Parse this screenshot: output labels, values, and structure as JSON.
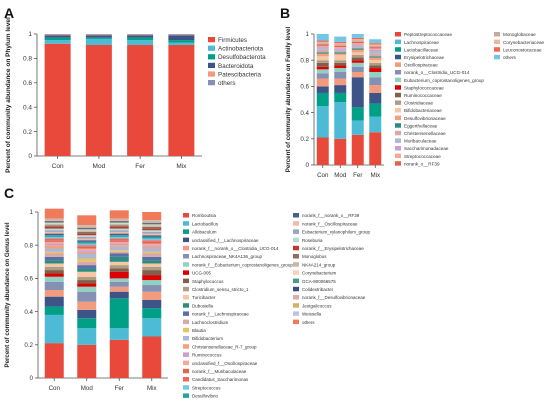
{
  "chart_data": [
    {
      "panel": "A",
      "type": "bar",
      "stacked": true,
      "ylabel": "Percent of community abundance on Phylum level",
      "ylim": [
        0,
        1
      ],
      "yticks": [
        "0",
        "0.2",
        "0.4",
        "0.6",
        "0.8",
        "1"
      ],
      "categories": [
        "Con",
        "Mod",
        "Fer",
        "Mix"
      ],
      "series": [
        {
          "name": "Firmicutes",
          "color": "#E8493A",
          "values": [
            0.92,
            0.91,
            0.91,
            0.91
          ]
        },
        {
          "name": "Actinobacteriota",
          "color": "#4DBBD5",
          "values": [
            0.03,
            0.05,
            0.04,
            0.02
          ]
        },
        {
          "name": "Desulfobacterota",
          "color": "#00A087",
          "values": [
            0.02,
            0.01,
            0.02,
            0.02
          ]
        },
        {
          "name": "Bacteroidota",
          "color": "#3C5488",
          "values": [
            0.02,
            0.02,
            0.02,
            0.04
          ]
        },
        {
          "name": "Patescibacteria",
          "color": "#F39B7F",
          "values": [
            0.005,
            0.005,
            0.005,
            0.005
          ]
        },
        {
          "name": "others",
          "color": "#8491B4",
          "values": [
            0.005,
            0.005,
            0.005,
            0.005
          ]
        }
      ]
    },
    {
      "panel": "B",
      "type": "bar",
      "stacked": true,
      "ylabel": "Percent of community abundance on Family level",
      "ylim": [
        0,
        1
      ],
      "yticks": [
        "0",
        "0.2",
        "0.4",
        "0.6",
        "0.8",
        "1"
      ],
      "categories": [
        "Con",
        "Mod",
        "Fer",
        "Mix"
      ],
      "series": [
        {
          "name": "Peptostreptococcaceae",
          "color": "#E8493A",
          "values": [
            0.21,
            0.2,
            0.23,
            0.25
          ]
        },
        {
          "name": "Lachnospiraceae",
          "color": "#4DBBD5",
          "values": [
            0.24,
            0.28,
            0.11,
            0.12
          ]
        },
        {
          "name": "Lactobacillaceae",
          "color": "#00A087",
          "values": [
            0.1,
            0.07,
            0.1,
            0.1
          ]
        },
        {
          "name": "Erysipelotrichaceae",
          "color": "#3C5488",
          "values": [
            0.05,
            0.06,
            0.23,
            0.08
          ]
        },
        {
          "name": "Oscillospiraceae",
          "color": "#F39B7F",
          "values": [
            0.06,
            0.05,
            0.04,
            0.06
          ]
        },
        {
          "name": "norank_o__Clostridia_UCG-014",
          "color": "#8491B4",
          "values": [
            0.04,
            0.05,
            0.04,
            0.06
          ]
        },
        {
          "name": "Eubacterium_coprostanoligenes_group",
          "color": "#91D1C2",
          "values": [
            0.03,
            0.03,
            0.03,
            0.04
          ]
        },
        {
          "name": "Staphylococcaceae",
          "color": "#DC0000",
          "values": [
            0.02,
            0.02,
            0.02,
            0.03
          ]
        },
        {
          "name": "Ruminococcaceae",
          "color": "#7E6148",
          "values": [
            0.03,
            0.02,
            0.02,
            0.02
          ]
        },
        {
          "name": "Clostridiaceae",
          "color": "#B09C85",
          "values": [
            0.02,
            0.02,
            0.02,
            0.02
          ]
        },
        {
          "name": "Bifidobacteriaceae",
          "color": "#F7C6A5",
          "values": [
            0.03,
            0.04,
            0.02,
            0.02
          ]
        },
        {
          "name": "Desulfovibrionaceae",
          "color": "#F4A07A",
          "values": [
            0.02,
            0.01,
            0.02,
            0.02
          ]
        },
        {
          "name": "Eggerthellaceae",
          "color": "#2E8B7F",
          "values": [
            0.01,
            0.01,
            0.01,
            0.01
          ]
        },
        {
          "name": "Christensenellaceae",
          "color": "#D9A8A8",
          "values": [
            0.02,
            0.01,
            0.01,
            0.02
          ]
        },
        {
          "name": "Muribaculaceae",
          "color": "#A9B9D6",
          "values": [
            0.01,
            0.01,
            0.01,
            0.02
          ]
        },
        {
          "name": "Saccharimonadaceae",
          "color": "#C7A0D0",
          "values": [
            0.01,
            0.01,
            0.01,
            0.01
          ]
        },
        {
          "name": "Streptococcaceae",
          "color": "#F8A89A",
          "values": [
            0.01,
            0.01,
            0.01,
            0.01
          ]
        },
        {
          "name": "norank_o__RF39",
          "color": "#E0654F",
          "values": [
            0.01,
            0.01,
            0.01,
            0.01
          ]
        },
        {
          "name": "Monoglobaceae",
          "color": "#C9A8A0",
          "values": [
            0.01,
            0.01,
            0.01,
            0.01
          ]
        },
        {
          "name": "Corynebacteriaceae",
          "color": "#E8B89A",
          "values": [
            0.01,
            0.01,
            0.01,
            0.01
          ]
        },
        {
          "name": "Leuconostocaceae",
          "color": "#F2665A",
          "values": [
            0.01,
            0.01,
            0.01,
            0.01
          ]
        },
        {
          "name": "others",
          "color": "#73C6E6",
          "values": [
            0.05,
            0.04,
            0.03,
            0.03
          ]
        }
      ]
    },
    {
      "panel": "C",
      "type": "bar",
      "stacked": true,
      "ylabel": "Percent of community abundance on Genus level",
      "ylim": [
        0,
        1
      ],
      "yticks": [
        "0",
        "0.2",
        "0.4",
        "0.6",
        "0.8",
        "1"
      ],
      "categories": [
        "Con",
        "Mod",
        "Fer",
        "Mix"
      ],
      "series": [
        {
          "name": "Romboutsia",
          "color": "#E8493A",
          "values": [
            0.21,
            0.2,
            0.23,
            0.25
          ]
        },
        {
          "name": "Lactobacillus",
          "color": "#4DBBD5",
          "values": [
            0.17,
            0.1,
            0.07,
            0.11
          ]
        },
        {
          "name": "Allobaculum",
          "color": "#00A087",
          "values": [
            0.05,
            0.06,
            0.18,
            0.06
          ]
        },
        {
          "name": "unclassified_f__Lachnospiraceae",
          "color": "#3C5488",
          "values": [
            0.06,
            0.05,
            0.04,
            0.05
          ]
        },
        {
          "name": "norank_f__norank_o__Clostridia_UCG-014",
          "color": "#F39B7F",
          "values": [
            0.04,
            0.05,
            0.03,
            0.05
          ]
        },
        {
          "name": "Lachnospiraceae_NK4A136_group",
          "color": "#8491B4",
          "values": [
            0.05,
            0.06,
            0.03,
            0.04
          ]
        },
        {
          "name": "norank_f__Eubacterium_coprostanoligenes_group",
          "color": "#91D1C2",
          "values": [
            0.03,
            0.03,
            0.02,
            0.03
          ]
        },
        {
          "name": "UCG-005",
          "color": "#DC0000",
          "values": [
            0.02,
            0.02,
            0.04,
            0.03
          ]
        },
        {
          "name": "Staphylococcus",
          "color": "#7E6148",
          "values": [
            0.02,
            0.02,
            0.02,
            0.03
          ]
        },
        {
          "name": "Clostridium_sensu_stricto_1",
          "color": "#B09C85",
          "values": [
            0.02,
            0.02,
            0.02,
            0.02
          ]
        },
        {
          "name": "Turicibacter",
          "color": "#F7C6A5",
          "values": [
            0.02,
            0.03,
            0.02,
            0.02
          ]
        },
        {
          "name": "Dubosiella",
          "color": "#2E8B7F",
          "values": [
            0.02,
            0.02,
            0.03,
            0.02
          ]
        },
        {
          "name": "norank_f__Lachnospiraceae",
          "color": "#5A6FA8",
          "values": [
            0.02,
            0.02,
            0.02,
            0.02
          ]
        },
        {
          "name": "Lachnoclostridium",
          "color": "#D9A8A8",
          "values": [
            0.02,
            0.02,
            0.01,
            0.02
          ]
        },
        {
          "name": "Blautia",
          "color": "#E8C26A",
          "values": [
            0.01,
            0.02,
            0.01,
            0.01
          ]
        },
        {
          "name": "Bifidobacterium",
          "color": "#A9B9D6",
          "values": [
            0.02,
            0.03,
            0.02,
            0.02
          ]
        },
        {
          "name": "Christensenellaceae_R-7_group",
          "color": "#F4A07A",
          "values": [
            0.02,
            0.01,
            0.01,
            0.01
          ]
        },
        {
          "name": "Ruminococcus",
          "color": "#C7A0D0",
          "values": [
            0.01,
            0.01,
            0.01,
            0.01
          ]
        },
        {
          "name": "unclassified_f__Oscillospiraceae",
          "color": "#F8A89A",
          "values": [
            0.01,
            0.01,
            0.01,
            0.01
          ]
        },
        {
          "name": "norank_f__Muribaculaceae",
          "color": "#E0654F",
          "values": [
            0.01,
            0.01,
            0.01,
            0.01
          ]
        },
        {
          "name": "Candidatus_Saccharimonas",
          "color": "#F2665A",
          "values": [
            0.01,
            0.01,
            0.01,
            0.01
          ]
        },
        {
          "name": "Streptococcus",
          "color": "#73C6E6",
          "values": [
            0.01,
            0.01,
            0.01,
            0.01
          ]
        },
        {
          "name": "Desulfovibrio",
          "color": "#26A69A",
          "values": [
            0.01,
            0.01,
            0.01,
            0.01
          ]
        },
        {
          "name": "norank_f__norank_o__RF39",
          "color": "#44608F",
          "values": [
            0.01,
            0.01,
            0.01,
            0.01
          ]
        },
        {
          "name": "norank_f__Oscillospiraceae",
          "color": "#F6B8A8",
          "values": [
            0.01,
            0.01,
            0.01,
            0.01
          ]
        },
        {
          "name": "Eubacterium_xylanophilum_group",
          "color": "#9AA4C0",
          "values": [
            0.01,
            0.01,
            0.01,
            0.01
          ]
        },
        {
          "name": "Roseburia",
          "color": "#B2DFD4",
          "values": [
            0.01,
            0.01,
            0.01,
            0.01
          ]
        },
        {
          "name": "norank_f__Erysipelotrichaceae",
          "color": "#C0392B",
          "values": [
            0.01,
            0.01,
            0.01,
            0.01
          ]
        },
        {
          "name": "Monoglobus",
          "color": "#8D6E63",
          "values": [
            0.01,
            0.01,
            0.01,
            0.01
          ]
        },
        {
          "name": "NK4A214_group",
          "color": "#C8B8A6",
          "values": [
            0.01,
            0.01,
            0.01,
            0.01
          ]
        },
        {
          "name": "Corynebacterium",
          "color": "#F9D3B8",
          "values": [
            0.005,
            0.005,
            0.005,
            0.005
          ]
        },
        {
          "name": "GCA-900066575",
          "color": "#4A9B8E",
          "values": [
            0.005,
            0.005,
            0.005,
            0.005
          ]
        },
        {
          "name": "Colidextribacter",
          "color": "#3E4E7A",
          "values": [
            0.005,
            0.005,
            0.005,
            0.005
          ]
        },
        {
          "name": "norank_f__Desulfovibrionaceae",
          "color": "#E2A9A9",
          "values": [
            0.005,
            0.005,
            0.005,
            0.005
          ]
        },
        {
          "name": "Jeotgalicoccus",
          "color": "#D4B06A",
          "values": [
            0.005,
            0.005,
            0.005,
            0.005
          ]
        },
        {
          "name": "Weissella",
          "color": "#B9C6DF",
          "values": [
            0.005,
            0.005,
            0.005,
            0.005
          ]
        },
        {
          "name": "others",
          "color": "#F07A5A",
          "values": [
            0.06,
            0.06,
            0.05,
            0.05
          ]
        }
      ]
    }
  ]
}
